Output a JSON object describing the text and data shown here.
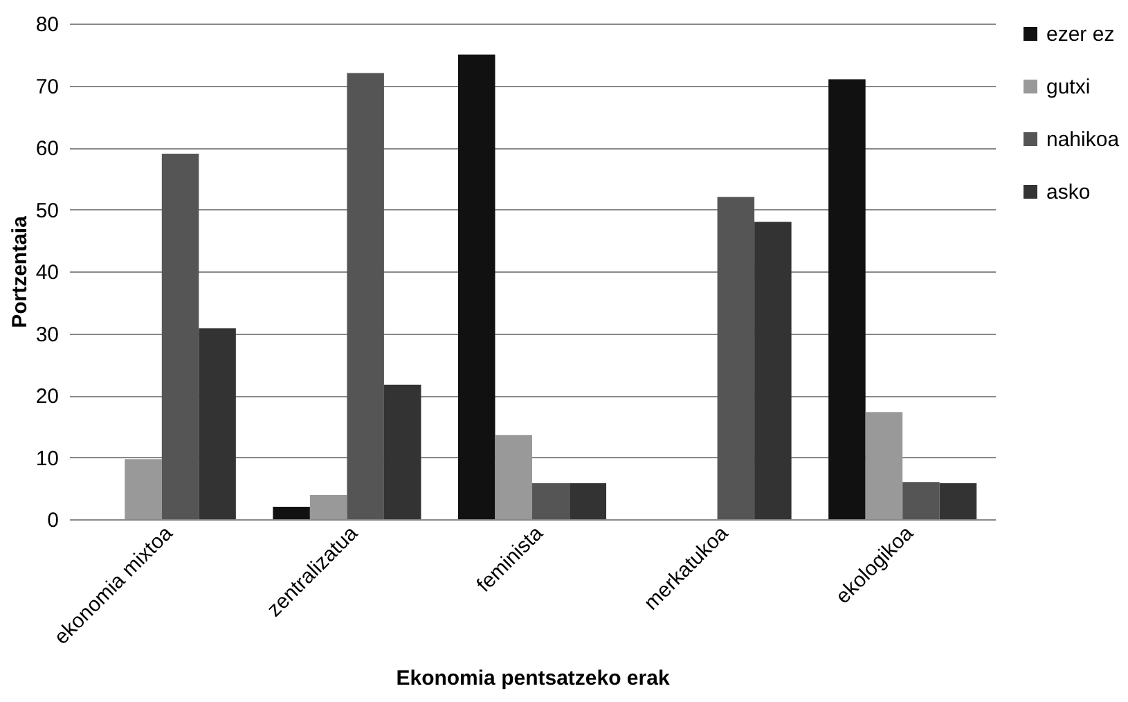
{
  "chart_data": {
    "type": "bar",
    "xlabel": "Ekonomia pentsatzeko erak",
    "ylabel": "Portzentaia",
    "categories": [
      "ekonomia mixtoa",
      "zentralizatua",
      "feminista",
      "merkatukoa",
      "ekologikoa"
    ],
    "series": [
      {
        "name": "ezer ez",
        "color": "#111111",
        "values": [
          0,
          2,
          75,
          0,
          71
        ]
      },
      {
        "name": "gutxi",
        "color": "#999999",
        "values": [
          9.7,
          3.9,
          13.6,
          0,
          17.3
        ]
      },
      {
        "name": "nahikoa",
        "color": "#555555",
        "values": [
          59,
          72,
          5.8,
          52,
          6
        ]
      },
      {
        "name": "asko",
        "color": "#333333",
        "values": [
          30.8,
          21.7,
          5.8,
          48,
          5.8
        ]
      }
    ],
    "ylim": [
      0,
      80
    ],
    "yticks": [
      0,
      10,
      20,
      30,
      40,
      50,
      60,
      70,
      80
    ],
    "grid": "y",
    "legend": "right"
  }
}
